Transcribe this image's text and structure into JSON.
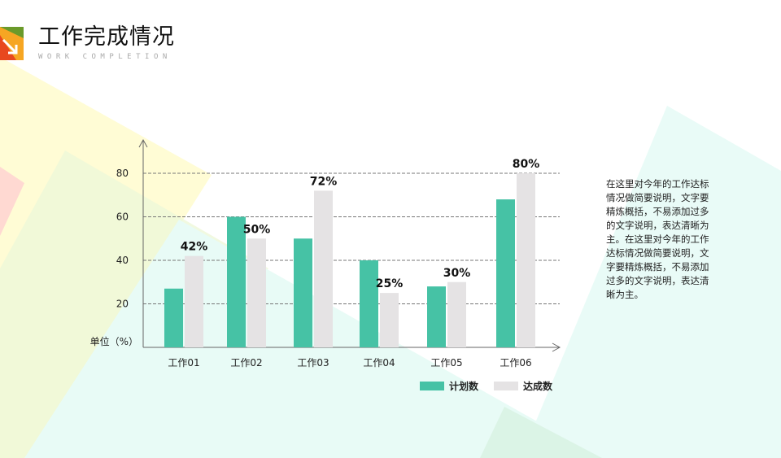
{
  "header": {
    "title": "工作完成情况",
    "subtitle": "WORK COMPLETION"
  },
  "description": "在这里对今年的工作达标情况做简要说明，文字要精炼概括，不易添加过多的文字说明，表达清晰为主。在这里对今年的工作达标情况做简要说明，文字要精炼概括，不易添加过多的文字说明，表达清晰为主。",
  "colors": {
    "plan": "#46c2a5",
    "actual": "#e5e3e4"
  },
  "chart_data": {
    "type": "bar",
    "categories": [
      "工作01",
      "工作02",
      "工作03",
      "工作04",
      "工作05",
      "工作06"
    ],
    "series": [
      {
        "name": "计划数",
        "values": [
          27,
          60,
          50,
          40,
          28,
          68
        ]
      },
      {
        "name": "达成数",
        "values": [
          42,
          50,
          72,
          25,
          30,
          80
        ],
        "labels": [
          "42%",
          "50%",
          "72%",
          "25%",
          "30%",
          "80%"
        ]
      }
    ],
    "ylabel": "单位（%）",
    "yticks": [
      20,
      40,
      60,
      80
    ],
    "ylim": [
      0,
      95
    ],
    "grid": "dashed horizontal",
    "legend": "bottom-right"
  }
}
